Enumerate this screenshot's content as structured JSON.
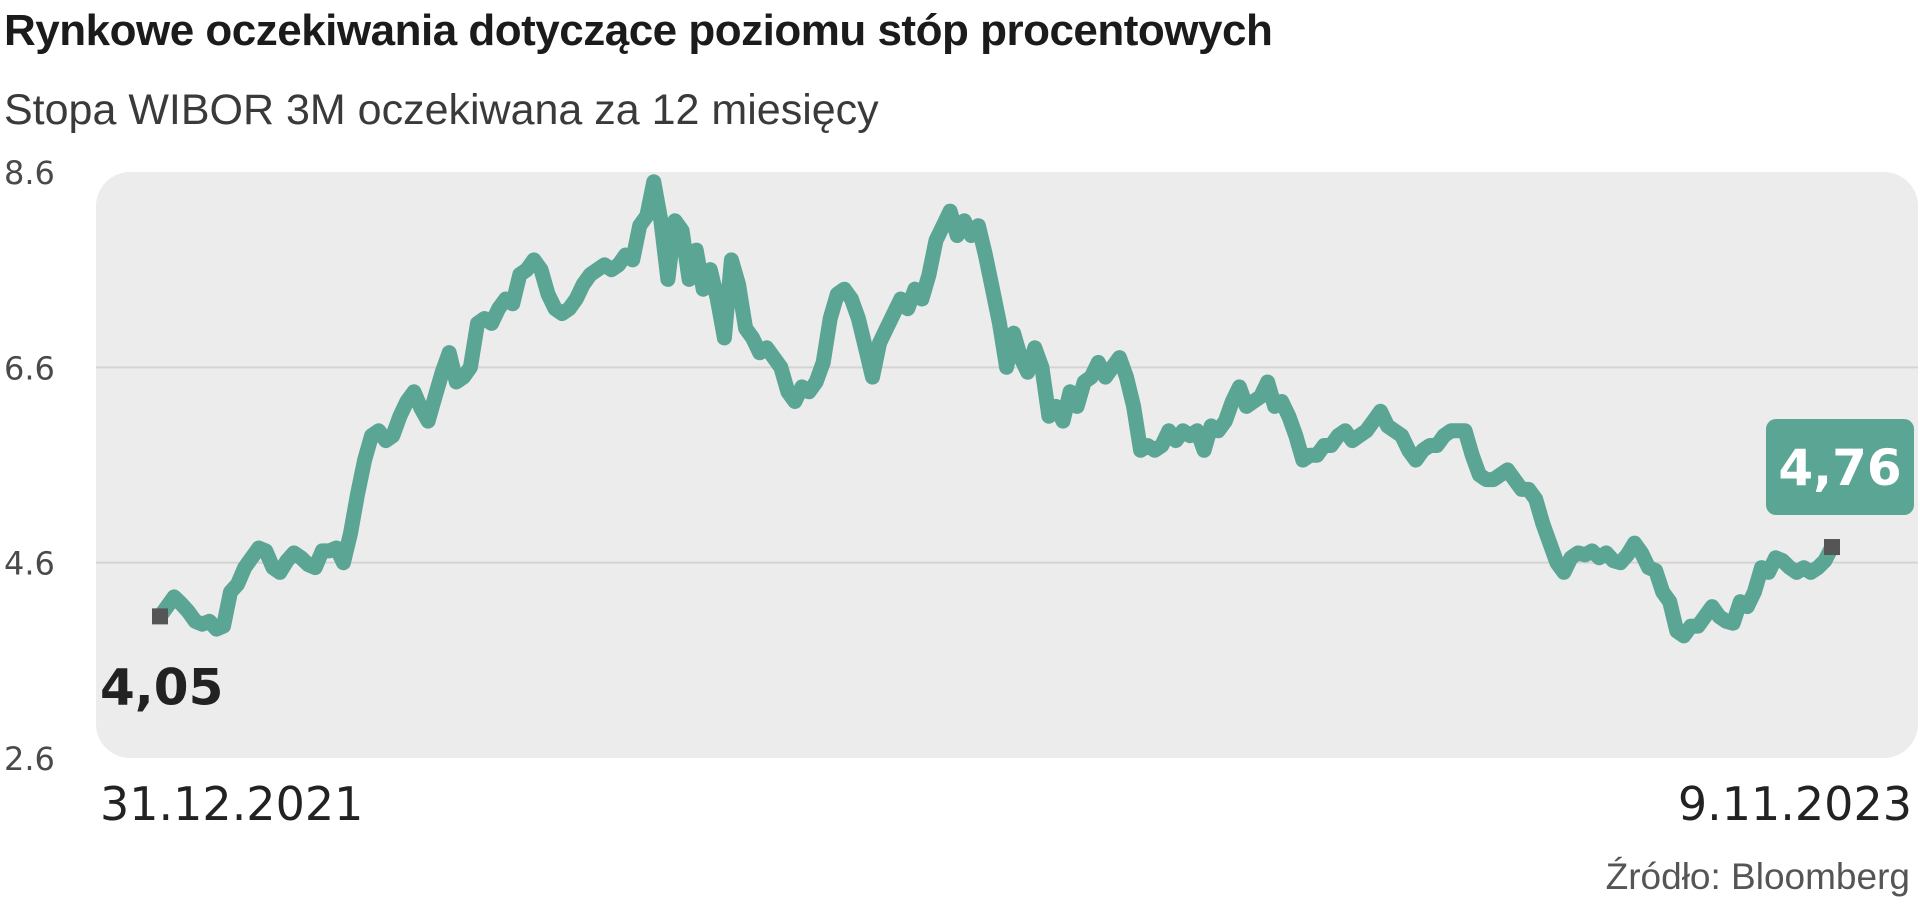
{
  "header": {
    "title": "Rynkowe oczekiwania dotyczące poziomu stóp procentowych",
    "subtitle": "Stopa WIBOR 3M oczekiwana za 12 miesięcy"
  },
  "footer": {
    "source": "Źródło: Bloomberg"
  },
  "colors": {
    "line": "#5aa593",
    "plot_background": "#ececec",
    "grid": "#d4d4d4",
    "marker": "#555555",
    "badge": "#5aa593"
  },
  "chart_data": {
    "type": "line",
    "title": "Rynkowe oczekiwania dotyczące poziomu stóp procentowych",
    "subtitle": "Stopa WIBOR 3M oczekiwana za 12 miesięcy",
    "xlabel": "",
    "ylabel": "",
    "x_range": [
      "31.12.2021",
      "9.11.2023"
    ],
    "x_tick_labels": [
      "31.12.2021",
      "9.11.2023"
    ],
    "ylim": [
      2.6,
      8.6
    ],
    "y_ticks": [
      2.6,
      4.6,
      6.6,
      8.6
    ],
    "y_tick_labels": [
      "2.6",
      "4.6",
      "6.6",
      "8.6"
    ],
    "grid": true,
    "start_value_label": "4,05",
    "end_value_label": "4,76",
    "series": [
      {
        "values": [
          4.05,
          4.15,
          4.25,
          4.18,
          4.1,
          4.0,
          3.97,
          4.0,
          3.92,
          3.95,
          4.3,
          4.38,
          4.55,
          4.65,
          4.75,
          4.72,
          4.55,
          4.5,
          4.62,
          4.7,
          4.65,
          4.58,
          4.55,
          4.72,
          4.72,
          4.75,
          4.6,
          4.9,
          5.3,
          5.65,
          5.9,
          5.95,
          5.85,
          5.9,
          6.1,
          6.25,
          6.35,
          6.18,
          6.05,
          6.3,
          6.55,
          6.75,
          6.45,
          6.5,
          6.6,
          7.05,
          7.1,
          7.05,
          7.2,
          7.3,
          7.25,
          7.55,
          7.6,
          7.7,
          7.6,
          7.35,
          7.2,
          7.15,
          7.2,
          7.3,
          7.45,
          7.55,
          7.6,
          7.65,
          7.6,
          7.65,
          7.75,
          7.7,
          8.05,
          8.15,
          8.5,
          8.1,
          7.5,
          8.1,
          8.0,
          7.5,
          7.8,
          7.4,
          7.6,
          7.3,
          6.9,
          7.7,
          7.45,
          7.0,
          6.9,
          6.75,
          6.8,
          6.7,
          6.6,
          6.35,
          6.25,
          6.4,
          6.35,
          6.45,
          6.65,
          7.1,
          7.35,
          7.4,
          7.3,
          7.1,
          6.8,
          6.5,
          6.85,
          7.0,
          7.15,
          7.3,
          7.2,
          7.4,
          7.3,
          7.55,
          7.9,
          8.05,
          8.2,
          7.95,
          8.1,
          7.95,
          8.05,
          7.75,
          7.4,
          7.05,
          6.6,
          6.95,
          6.7,
          6.55,
          6.8,
          6.6,
          6.1,
          6.2,
          6.05,
          6.35,
          6.2,
          6.45,
          6.5,
          6.65,
          6.5,
          6.6,
          6.7,
          6.5,
          6.2,
          5.75,
          5.8,
          5.75,
          5.8,
          5.95,
          5.85,
          5.95,
          5.9,
          5.95,
          5.75,
          6.0,
          5.95,
          6.05,
          6.25,
          6.4,
          6.2,
          6.25,
          6.3,
          6.45,
          6.2,
          6.25,
          6.1,
          5.9,
          5.65,
          5.7,
          5.7,
          5.8,
          5.8,
          5.9,
          5.95,
          5.85,
          5.9,
          5.95,
          6.05,
          6.15,
          6.0,
          5.95,
          5.9,
          5.75,
          5.65,
          5.75,
          5.8,
          5.8,
          5.9,
          5.95,
          5.95,
          5.95,
          5.7,
          5.5,
          5.45,
          5.45,
          5.5,
          5.55,
          5.45,
          5.35,
          5.35,
          5.25,
          5.0,
          4.8,
          4.6,
          4.5,
          4.65,
          4.7,
          4.68,
          4.72,
          4.65,
          4.7,
          4.62,
          4.6,
          4.68,
          4.8,
          4.7,
          4.55,
          4.52,
          4.3,
          4.2,
          3.9,
          3.85,
          3.95,
          3.95,
          4.05,
          4.15,
          4.05,
          4.0,
          3.98,
          4.2,
          4.15,
          4.3,
          4.55,
          4.5,
          4.65,
          4.62,
          4.55,
          4.5,
          4.55,
          4.5,
          4.55,
          4.62,
          4.76
        ]
      }
    ]
  }
}
